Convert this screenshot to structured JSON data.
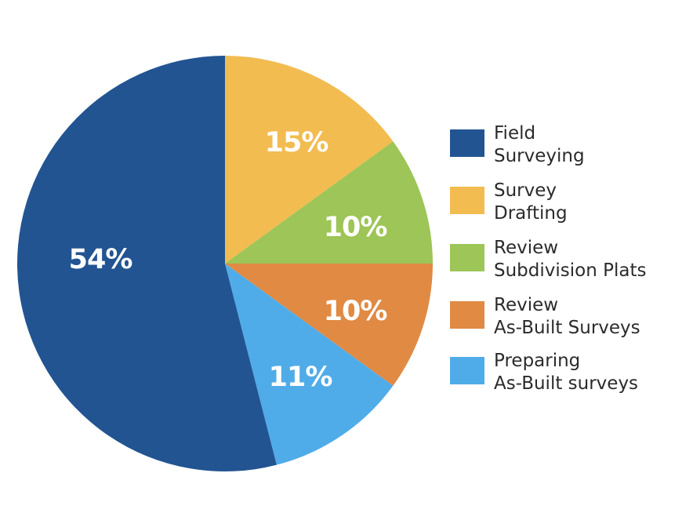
{
  "chart_data": {
    "type": "pie",
    "title": "",
    "start_angle_deg": 0,
    "direction": "clockwise",
    "slices": [
      {
        "name": "Survey Drafting",
        "label": "15%",
        "value": 15,
        "color": "#F2BC51"
      },
      {
        "name": "Review Subdivision Plats",
        "label": "10%",
        "value": 10,
        "color": "#9DC557"
      },
      {
        "name": "Review As-Built Surveys",
        "label": "10%",
        "value": 10,
        "color": "#E08A44"
      },
      {
        "name": "Preparing As-Built surveys",
        "label": "11%",
        "value": 11,
        "color": "#50ACE8"
      },
      {
        "name": "Field Surveying",
        "label": "54%",
        "value": 54,
        "color": "#225492"
      }
    ],
    "legend": {
      "position": "right",
      "entries": [
        {
          "line1": "Field",
          "line2": "Surveying",
          "color": "#225492"
        },
        {
          "line1": "Survey",
          "line2": "Drafting",
          "color": "#F2BC51"
        },
        {
          "line1": "Review",
          "line2": "Subdivision Plats",
          "color": "#9DC557"
        },
        {
          "line1": "Review",
          "line2": "As-Built Surveys",
          "color": "#E08A44"
        },
        {
          "line1": "Preparing",
          "line2": "As-Built surveys",
          "color": "#50ACE8"
        }
      ]
    }
  }
}
